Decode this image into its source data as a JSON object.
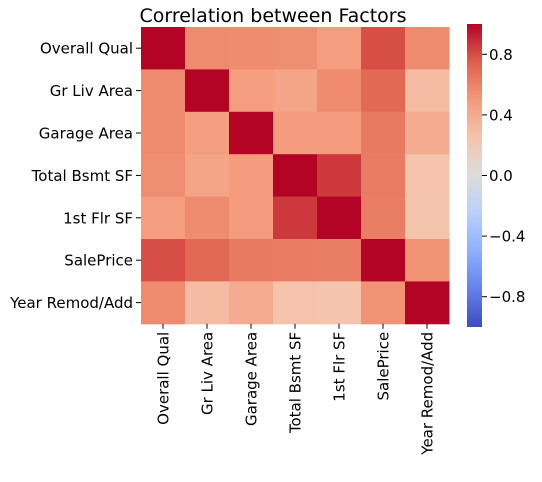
{
  "chart_data": {
    "type": "heatmap",
    "title": "Correlation between Factors",
    "row_labels": [
      "Overall Qual",
      "Gr Liv Area",
      "Garage Area",
      "Total Bsmt SF",
      "1st Flr SF",
      "SalePrice",
      "Year Remod/Add"
    ],
    "col_labels": [
      "Overall Qual",
      "Gr Liv Area",
      "Garage Area",
      "Total Bsmt SF",
      "1st Flr SF",
      "SalePrice",
      "Year Remod/Add"
    ],
    "values": [
      [
        1.0,
        0.57,
        0.56,
        0.55,
        0.48,
        0.8,
        0.57
      ],
      [
        0.57,
        1.0,
        0.48,
        0.44,
        0.56,
        0.71,
        0.3
      ],
      [
        0.56,
        0.48,
        1.0,
        0.49,
        0.49,
        0.64,
        0.4
      ],
      [
        0.55,
        0.44,
        0.49,
        1.0,
        0.86,
        0.63,
        0.26
      ],
      [
        0.48,
        0.56,
        0.49,
        0.86,
        1.0,
        0.62,
        0.25
      ],
      [
        0.8,
        0.71,
        0.64,
        0.63,
        0.62,
        1.0,
        0.53
      ],
      [
        0.57,
        0.3,
        0.4,
        0.26,
        0.25,
        0.53,
        1.0
      ]
    ],
    "colormap": "coolwarm",
    "vmin": -1.0,
    "vmax": 1.0,
    "colorbar_ticks": [
      "0.8",
      "0.4",
      "0.0",
      "−0.4",
      "−0.8"
    ],
    "colorbar_tick_values": [
      0.8,
      0.4,
      0.0,
      -0.4,
      -0.8
    ]
  }
}
